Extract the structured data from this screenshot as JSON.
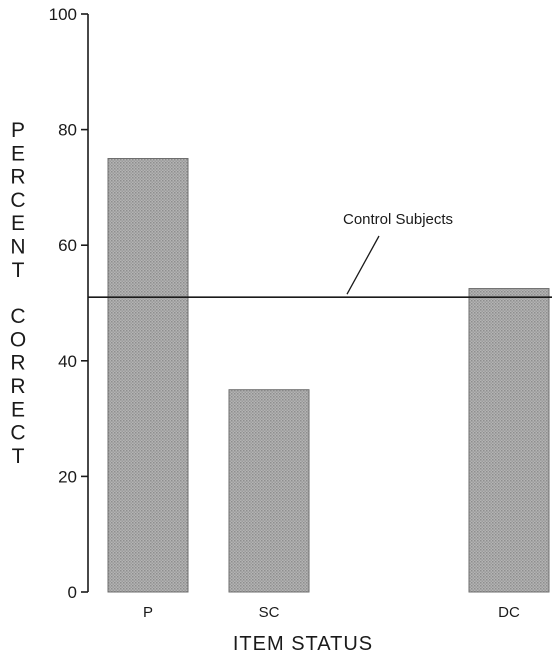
{
  "chart_data": {
    "type": "bar",
    "categories": [
      "P",
      "SC",
      "",
      "DC"
    ],
    "values": [
      75,
      35,
      null,
      52.5
    ],
    "xlabel": "ITEM STATUS",
    "ylabel_words": [
      "PERCENT",
      "CORRECT"
    ],
    "ylim": [
      0,
      100
    ],
    "yticks": [
      0,
      20,
      40,
      60,
      80,
      100
    ],
    "grid": false,
    "legend": "none",
    "reference_line": {
      "label": "Control Subjects",
      "value": 51
    },
    "bar_color": "#a9a9a9"
  }
}
